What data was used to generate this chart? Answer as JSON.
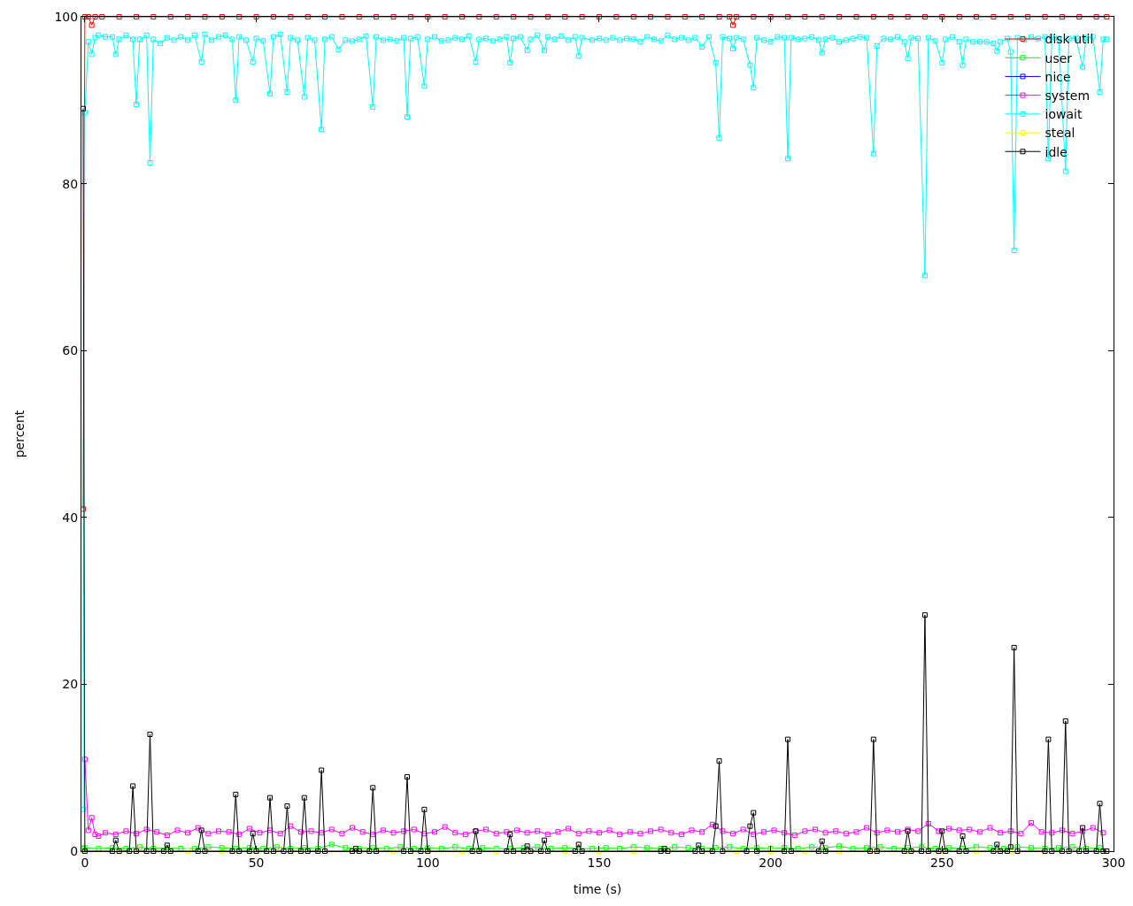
{
  "chart_data": {
    "type": "line",
    "xlabel": "time (s)",
    "ylabel": "percent",
    "xlim": [
      -1,
      300
    ],
    "ylim": [
      0,
      100
    ],
    "xticks": [
      0,
      50,
      100,
      150,
      200,
      250,
      300
    ],
    "yticks": [
      0,
      20,
      40,
      60,
      80,
      100
    ],
    "grid": false,
    "legend": "top right",
    "marker": "square",
    "line_style": "solid",
    "series": [
      {
        "name": "disk util",
        "color": "#ff0000",
        "x": [
          -0.5,
          0,
          1,
          2,
          3,
          5,
          10,
          15,
          20,
          25,
          30,
          35,
          40,
          45,
          50,
          55,
          60,
          65,
          70,
          75,
          80,
          85,
          90,
          95,
          100,
          105,
          110,
          115,
          120,
          125,
          130,
          135,
          140,
          145,
          150,
          155,
          160,
          165,
          170,
          175,
          180,
          185,
          188,
          189,
          190,
          195,
          200,
          205,
          210,
          215,
          220,
          225,
          230,
          235,
          240,
          245,
          250,
          255,
          260,
          265,
          270,
          275,
          280,
          285,
          290,
          295,
          298
        ],
        "values": [
          41,
          100,
          100,
          99,
          100,
          100,
          100,
          100,
          100,
          100,
          100,
          100,
          100,
          100,
          100,
          100,
          100,
          100,
          100,
          100,
          100,
          100,
          100,
          100,
          100,
          100,
          100,
          100,
          100,
          100,
          100,
          100,
          100,
          100,
          100,
          100,
          100,
          100,
          100,
          100,
          100,
          100,
          100,
          99,
          100,
          100,
          100,
          100,
          100,
          100,
          100,
          100,
          100,
          100,
          100,
          100,
          100,
          100,
          100,
          100,
          100,
          100,
          100,
          100,
          100,
          100,
          100
        ]
      },
      {
        "name": "user",
        "color": "#00ff00",
        "x": [
          -0.5,
          0,
          4,
          8,
          12,
          16,
          20,
          24,
          28,
          32,
          36,
          40,
          44,
          48,
          52,
          56,
          60,
          64,
          68,
          72,
          76,
          80,
          84,
          88,
          92,
          96,
          100,
          104,
          108,
          112,
          116,
          120,
          124,
          128,
          132,
          136,
          140,
          144,
          148,
          152,
          156,
          160,
          164,
          168,
          172,
          176,
          180,
          184,
          188,
          192,
          196,
          200,
          204,
          208,
          212,
          216,
          220,
          224,
          228,
          232,
          236,
          240,
          244,
          248,
          252,
          256,
          260,
          264,
          268,
          272,
          276,
          280,
          284,
          288,
          292,
          296
        ],
        "values": [
          0.3,
          0.4,
          0.3,
          0.4,
          0.3,
          0.5,
          0.3,
          0.4,
          0.3,
          0.3,
          0.5,
          0.4,
          0.3,
          0.4,
          0.3,
          0.5,
          0.3,
          0.4,
          0.3,
          0.8,
          0.4,
          0.3,
          0.4,
          0.3,
          0.5,
          0.3,
          0.4,
          0.3,
          0.5,
          0.3,
          0.4,
          0.3,
          0.3,
          0.4,
          0.5,
          0.3,
          0.4,
          0.3,
          0.3,
          0.4,
          0.3,
          0.5,
          0.4,
          0.3,
          0.5,
          0.4,
          0.3,
          0.4,
          0.5,
          0.3,
          0.4,
          0.3,
          0.4,
          0.3,
          0.5,
          0.4,
          0.6,
          0.3,
          0.4,
          0.5,
          0.3,
          0.4,
          0.5,
          0.3,
          0.4,
          0.3,
          0.5,
          0.4,
          0.3,
          0.5,
          0.4,
          0.3,
          0.4,
          0.5,
          0.3,
          0.4
        ]
      },
      {
        "name": "nice",
        "color": "#0000ff",
        "values": [
          null
        ]
      },
      {
        "name": "system",
        "color": "#ff00ff",
        "x": [
          0,
          1,
          2,
          3,
          4,
          6,
          9,
          12,
          15,
          18,
          21,
          24,
          27,
          30,
          33,
          36,
          39,
          42,
          45,
          48,
          51,
          54,
          57,
          60,
          63,
          66,
          69,
          72,
          75,
          78,
          81,
          84,
          87,
          90,
          93,
          96,
          99,
          102,
          105,
          108,
          111,
          114,
          117,
          120,
          123,
          126,
          129,
          132,
          135,
          138,
          141,
          144,
          147,
          150,
          153,
          156,
          159,
          162,
          165,
          168,
          171,
          174,
          177,
          180,
          183,
          186,
          189,
          192,
          195,
          198,
          201,
          204,
          207,
          210,
          213,
          216,
          219,
          222,
          225,
          228,
          231,
          234,
          237,
          240,
          243,
          246,
          249,
          252,
          255,
          258,
          261,
          264,
          267,
          270,
          273,
          276,
          279,
          282,
          285,
          288,
          291,
          294,
          297
        ],
        "values": [
          11,
          2.5,
          4,
          2,
          1.8,
          2.2,
          2.0,
          2.4,
          2.1,
          2.6,
          2.3,
          1.9,
          2.5,
          2.2,
          2.8,
          2.1,
          2.4,
          2.3,
          2.0,
          2.7,
          2.2,
          2.5,
          2.1,
          3.0,
          2.3,
          2.4,
          2.2,
          2.6,
          2.1,
          2.8,
          2.3,
          2.0,
          2.5,
          2.2,
          2.4,
          2.6,
          2.1,
          2.3,
          2.9,
          2.2,
          2.0,
          2.4,
          2.6,
          2.1,
          2.3,
          2.5,
          2.2,
          2.4,
          2.0,
          2.3,
          2.7,
          2.1,
          2.4,
          2.2,
          2.5,
          2.0,
          2.3,
          2.1,
          2.4,
          2.6,
          2.2,
          2.0,
          2.5,
          2.3,
          3.2,
          2.4,
          2.1,
          2.6,
          2.0,
          2.3,
          2.5,
          2.2,
          1.9,
          2.4,
          2.6,
          2.2,
          2.4,
          2.1,
          2.3,
          2.8,
          2.2,
          2.5,
          2.3,
          2.6,
          2.4,
          3.3,
          2.4,
          2.7,
          2.5,
          2.6,
          2.3,
          2.8,
          2.2,
          2.4,
          2.1,
          3.4,
          2.3,
          2.2,
          2.5,
          2.1,
          2.4,
          2.8,
          2.2
        ]
      },
      {
        "name": "iowait",
        "color": "#00ffff",
        "x": [
          -0.5,
          0,
          1,
          2,
          3,
          4,
          6,
          8,
          9,
          10,
          12,
          14,
          15,
          16,
          18,
          19,
          20,
          22,
          24,
          26,
          28,
          30,
          32,
          34,
          35,
          37,
          39,
          41,
          43,
          44,
          45,
          47,
          49,
          50,
          52,
          54,
          55,
          57,
          59,
          60,
          62,
          64,
          65,
          67,
          69,
          70,
          72,
          74,
          76,
          78,
          80,
          82,
          84,
          85,
          87,
          89,
          91,
          93,
          94,
          95,
          97,
          99,
          100,
          102,
          104,
          106,
          108,
          110,
          112,
          114,
          115,
          117,
          119,
          121,
          123,
          124,
          125,
          127,
          129,
          130,
          132,
          134,
          135,
          137,
          139,
          141,
          143,
          144,
          145,
          148,
          150,
          152,
          154,
          156,
          158,
          160,
          162,
          164,
          166,
          168,
          170,
          172,
          174,
          176,
          178,
          180,
          182,
          184,
          185,
          186,
          188,
          189,
          190,
          192,
          194,
          195,
          196,
          198,
          200,
          202,
          204,
          205,
          206,
          208,
          210,
          212,
          214,
          215,
          216,
          218,
          220,
          222,
          224,
          226,
          228,
          230,
          231,
          233,
          235,
          237,
          239,
          240,
          241,
          243,
          245,
          246,
          248,
          250,
          251,
          253,
          255,
          256,
          257,
          259,
          261,
          263,
          265,
          266,
          267,
          269,
          270,
          271,
          272,
          274,
          276,
          278,
          280,
          281,
          282,
          284,
          286,
          287,
          289,
          291,
          292,
          294,
          296,
          297,
          298
        ],
        "values": [
          5,
          88.5,
          97,
          95.5,
          97.5,
          97.8,
          97.6,
          97.6,
          95.5,
          97.3,
          97.8,
          97.3,
          89.5,
          97.3,
          97.8,
          82.5,
          97.3,
          96.8,
          97.5,
          97.2,
          97.6,
          97.2,
          97.8,
          94.6,
          97.9,
          97.2,
          97.6,
          97.8,
          97.3,
          90,
          97.6,
          97.2,
          94.6,
          97.4,
          97.1,
          90.8,
          97.6,
          97.9,
          91,
          97.5,
          97.2,
          90.4,
          97.5,
          97.2,
          86.5,
          97.3,
          97.6,
          96.1,
          97.2,
          97.1,
          97.3,
          97.7,
          89.2,
          97.6,
          97.2,
          97.3,
          97.1,
          97.5,
          88,
          97.4,
          97.6,
          91.7,
          97.3,
          97.6,
          97.1,
          97.2,
          97.5,
          97.3,
          97.7,
          94.6,
          97.3,
          97.4,
          97.1,
          97.3,
          97.6,
          94.5,
          97.4,
          97.6,
          96,
          97.3,
          97.8,
          96,
          97.6,
          97.3,
          97.7,
          97.2,
          97.6,
          95.3,
          97.5,
          97.2,
          97.4,
          97.2,
          97.5,
          97.2,
          97.4,
          97.3,
          97.0,
          97.6,
          97.3,
          97.1,
          97.8,
          97.3,
          97.5,
          97.2,
          97.5,
          96.4,
          97.6,
          94.5,
          85.5,
          97.6,
          97.4,
          96.2,
          97.5,
          97.3,
          94.2,
          91.5,
          97.5,
          97.2,
          97.0,
          97.6,
          97.5,
          83,
          97.5,
          97.3,
          97.4,
          97.6,
          97.2,
          95.7,
          97.3,
          97.5,
          97.0,
          97.2,
          97.4,
          97.6,
          97.5,
          83.6,
          96.5,
          97.4,
          97.3,
          97.6,
          97.0,
          95,
          97.5,
          97.4,
          69,
          97.5,
          97.1,
          94.5,
          97.3,
          97.6,
          97.0,
          94.2,
          97.3,
          97.0,
          97.0,
          97.0,
          96.8,
          95.9,
          97.0,
          97.4,
          95.8,
          72,
          97.5,
          97.2,
          97.6,
          97.4,
          97.6,
          83,
          97.6,
          97.4,
          81.5,
          97.4,
          97.5,
          94,
          97.5,
          97.6,
          91,
          97.3,
          97.3
        ]
      },
      {
        "name": "steal",
        "color": "#ffff00",
        "x": [
          -0.5,
          10,
          20,
          30,
          40,
          50,
          60,
          70,
          80,
          90,
          100,
          110,
          120,
          130,
          140,
          150,
          160,
          170,
          180,
          190,
          200,
          210,
          220,
          230,
          240,
          250,
          260,
          270,
          280
        ],
        "values": [
          0,
          0,
          0,
          0,
          0,
          0,
          0,
          0,
          0,
          0,
          0,
          0,
          0,
          0,
          0,
          0,
          0,
          0,
          0,
          0,
          0,
          0,
          0,
          0,
          0,
          0,
          0,
          0,
          0
        ]
      },
      {
        "name": "idle",
        "color": "#000000",
        "x": [
          -0.5,
          0,
          8,
          9,
          10,
          13,
          14,
          15,
          18,
          19,
          20,
          23,
          24,
          25,
          33,
          34,
          35,
          43,
          44,
          45,
          48,
          49,
          50,
          53,
          54,
          55,
          58,
          59,
          60,
          63,
          64,
          65,
          68,
          69,
          70,
          78,
          79,
          80,
          83,
          84,
          85,
          93,
          94,
          95,
          98,
          99,
          100,
          113,
          114,
          115,
          123,
          124,
          125,
          128,
          129,
          130,
          133,
          134,
          135,
          143,
          144,
          145,
          168,
          169,
          170,
          178,
          179,
          180,
          183,
          184,
          185,
          186,
          193,
          194,
          195,
          196,
          204,
          205,
          206,
          214,
          215,
          216,
          229,
          230,
          231,
          239,
          240,
          241,
          244,
          245,
          246,
          249,
          250,
          251,
          255,
          256,
          257,
          265,
          266,
          267,
          269,
          270,
          271,
          272,
          280,
          281,
          282,
          285,
          286,
          287,
          290,
          291,
          292,
          295,
          296,
          297,
          298
        ],
        "values": [
          89,
          0,
          0,
          1.3,
          0,
          0,
          7.8,
          0,
          0,
          14,
          0,
          0,
          0.7,
          0,
          0,
          2.5,
          0,
          0,
          6.8,
          0,
          0,
          2.1,
          0,
          0,
          6.4,
          0,
          0,
          5.4,
          0,
          0,
          6.4,
          0,
          0,
          9.7,
          0,
          0,
          0.3,
          0,
          0,
          7.6,
          0,
          0,
          8.9,
          0,
          0,
          5.0,
          0,
          0,
          2.4,
          0,
          0,
          2.0,
          0,
          0,
          0.6,
          0,
          0,
          1.3,
          0,
          0,
          0.8,
          0,
          0,
          0.3,
          0,
          0,
          0.7,
          0,
          0,
          3.0,
          10.8,
          0,
          0,
          3.0,
          4.6,
          0,
          0,
          13.4,
          0,
          0,
          1.2,
          0,
          0,
          13.4,
          0,
          0,
          2.4,
          0,
          0,
          28.3,
          0,
          0,
          2.4,
          0,
          0,
          1.8,
          0,
          0,
          0.8,
          0,
          0,
          0.5,
          24.4,
          0,
          0,
          13.4,
          0,
          0,
          15.6,
          0,
          0,
          2.8,
          0,
          0,
          5.7,
          0,
          0
        ]
      }
    ]
  }
}
